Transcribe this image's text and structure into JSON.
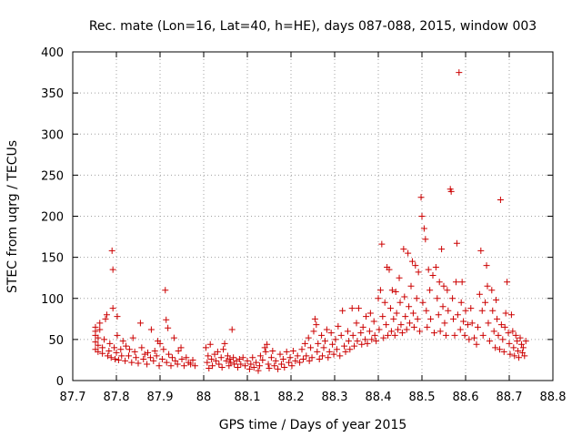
{
  "chart_data": {
    "type": "scatter",
    "title": "Rec. mate (Lon=16, Lat=40, h=HE), days 087-088, 2015, window 003",
    "xlabel": "GPS time / Days of year 2015",
    "ylabel": "STEC from uqrg / TECUs",
    "xlim": [
      87.7,
      88.8
    ],
    "ylim": [
      0,
      400
    ],
    "xticks": [
      87.7,
      87.8,
      87.9,
      88.0,
      88.1,
      88.2,
      88.3,
      88.4,
      88.5,
      88.6,
      88.7,
      88.8
    ],
    "xtick_labels": [
      "87.7",
      "87.8",
      "87.9",
      "88",
      "88.1",
      "88.2",
      "88.3",
      "88.4",
      "88.5",
      "88.6",
      "88.7",
      "88.8"
    ],
    "yticks": [
      0,
      50,
      100,
      150,
      200,
      250,
      300,
      350,
      400
    ],
    "ytick_labels": [
      "0",
      "50",
      "100",
      "150",
      "200",
      "250",
      "300",
      "350",
      "400"
    ],
    "grid": true,
    "marker": "+",
    "color": "#cc0000",
    "series": [
      {
        "name": "STEC",
        "points": [
          [
            87.752,
            38
          ],
          [
            87.752,
            47
          ],
          [
            87.752,
            55
          ],
          [
            87.752,
            60
          ],
          [
            87.752,
            65
          ],
          [
            87.758,
            35
          ],
          [
            87.758,
            43
          ],
          [
            87.758,
            52
          ],
          [
            87.762,
            62
          ],
          [
            87.762,
            70
          ],
          [
            87.768,
            33
          ],
          [
            87.768,
            40
          ],
          [
            87.772,
            50
          ],
          [
            87.775,
            75
          ],
          [
            87.778,
            80
          ],
          [
            87.78,
            30
          ],
          [
            87.783,
            36
          ],
          [
            87.785,
            45
          ],
          [
            87.788,
            28
          ],
          [
            87.79,
            158
          ],
          [
            87.792,
            135
          ],
          [
            87.792,
            88
          ],
          [
            87.795,
            40
          ],
          [
            87.797,
            26
          ],
          [
            87.8,
            34
          ],
          [
            87.802,
            55
          ],
          [
            87.802,
            78
          ],
          [
            87.805,
            25
          ],
          [
            87.81,
            38
          ],
          [
            87.812,
            30
          ],
          [
            87.815,
            48
          ],
          [
            87.82,
            24
          ],
          [
            87.822,
            42
          ],
          [
            87.828,
            30
          ],
          [
            87.83,
            38
          ],
          [
            87.835,
            22
          ],
          [
            87.838,
            52
          ],
          [
            87.842,
            35
          ],
          [
            87.845,
            28
          ],
          [
            87.85,
            21
          ],
          [
            87.855,
            70
          ],
          [
            87.858,
            40
          ],
          [
            87.862,
            26
          ],
          [
            87.865,
            32
          ],
          [
            87.87,
            20
          ],
          [
            87.872,
            34
          ],
          [
            87.878,
            28
          ],
          [
            87.88,
            62
          ],
          [
            87.885,
            24
          ],
          [
            87.888,
            36
          ],
          [
            87.892,
            30
          ],
          [
            87.895,
            48
          ],
          [
            87.898,
            18
          ],
          [
            87.9,
            45
          ],
          [
            87.905,
            26
          ],
          [
            87.908,
            38
          ],
          [
            87.912,
            110
          ],
          [
            87.914,
            74
          ],
          [
            87.915,
            22
          ],
          [
            87.918,
            64
          ],
          [
            87.92,
            32
          ],
          [
            87.925,
            18
          ],
          [
            87.928,
            28
          ],
          [
            87.932,
            52
          ],
          [
            87.935,
            24
          ],
          [
            87.94,
            20
          ],
          [
            87.942,
            36
          ],
          [
            87.948,
            40
          ],
          [
            87.95,
            26
          ],
          [
            87.955,
            18
          ],
          [
            87.96,
            28
          ],
          [
            87.965,
            22
          ],
          [
            87.97,
            20
          ],
          [
            87.975,
            25
          ],
          [
            87.98,
            18
          ],
          [
            88.005,
            40
          ],
          [
            88.008,
            22
          ],
          [
            88.01,
            30
          ],
          [
            88.012,
            15
          ],
          [
            88.015,
            44
          ],
          [
            88.018,
            26
          ],
          [
            88.02,
            18
          ],
          [
            88.025,
            32
          ],
          [
            88.028,
            24
          ],
          [
            88.032,
            35
          ],
          [
            88.035,
            20
          ],
          [
            88.04,
            28
          ],
          [
            88.042,
            16
          ],
          [
            88.045,
            38
          ],
          [
            88.048,
            45
          ],
          [
            88.052,
            24
          ],
          [
            88.055,
            30
          ],
          [
            88.058,
            18
          ],
          [
            88.06,
            26
          ],
          [
            88.062,
            22
          ],
          [
            88.065,
            62
          ],
          [
            88.068,
            28
          ],
          [
            88.07,
            20
          ],
          [
            88.075,
            24
          ],
          [
            88.078,
            16
          ],
          [
            88.082,
            26
          ],
          [
            88.085,
            20
          ],
          [
            88.09,
            28
          ],
          [
            88.095,
            18
          ],
          [
            88.1,
            24
          ],
          [
            88.105,
            14
          ],
          [
            88.108,
            20
          ],
          [
            88.112,
            28
          ],
          [
            88.115,
            16
          ],
          [
            88.12,
            22
          ],
          [
            88.125,
            12
          ],
          [
            88.128,
            18
          ],
          [
            88.13,
            30
          ],
          [
            88.135,
            25
          ],
          [
            88.14,
            40
          ],
          [
            88.142,
            35
          ],
          [
            88.145,
            44
          ],
          [
            88.148,
            20
          ],
          [
            88.15,
            15
          ],
          [
            88.155,
            28
          ],
          [
            88.158,
            36
          ],
          [
            88.162,
            18
          ],
          [
            88.165,
            24
          ],
          [
            88.17,
            14
          ],
          [
            88.175,
            32
          ],
          [
            88.178,
            20
          ],
          [
            88.182,
            26
          ],
          [
            88.185,
            16
          ],
          [
            88.19,
            35
          ],
          [
            88.195,
            22
          ],
          [
            88.198,
            28
          ],
          [
            88.202,
            18
          ],
          [
            88.205,
            36
          ],
          [
            88.21,
            24
          ],
          [
            88.215,
            30
          ],
          [
            88.22,
            22
          ],
          [
            88.225,
            38
          ],
          [
            88.228,
            26
          ],
          [
            88.232,
            45
          ],
          [
            88.235,
            30
          ],
          [
            88.24,
            52
          ],
          [
            88.242,
            24
          ],
          [
            88.245,
            40
          ],
          [
            88.248,
            28
          ],
          [
            88.252,
            60
          ],
          [
            88.255,
            75
          ],
          [
            88.258,
            68
          ],
          [
            88.26,
            35
          ],
          [
            88.262,
            45
          ],
          [
            88.265,
            26
          ],
          [
            88.27,
            55
          ],
          [
            88.272,
            30
          ],
          [
            88.275,
            40
          ],
          [
            88.278,
            48
          ],
          [
            88.282,
            62
          ],
          [
            88.285,
            28
          ],
          [
            88.288,
            35
          ],
          [
            88.292,
            58
          ],
          [
            88.295,
            44
          ],
          [
            88.298,
            32
          ],
          [
            88.302,
            50
          ],
          [
            88.305,
            38
          ],
          [
            88.308,
            66
          ],
          [
            88.312,
            30
          ],
          [
            88.315,
            55
          ],
          [
            88.318,
            85
          ],
          [
            88.322,
            42
          ],
          [
            88.325,
            35
          ],
          [
            88.33,
            60
          ],
          [
            88.332,
            48
          ],
          [
            88.335,
            38
          ],
          [
            88.34,
            88
          ],
          [
            88.342,
            55
          ],
          [
            88.345,
            42
          ],
          [
            88.35,
            70
          ],
          [
            88.352,
            48
          ],
          [
            88.355,
            88
          ],
          [
            88.36,
            58
          ],
          [
            88.362,
            44
          ],
          [
            88.365,
            65
          ],
          [
            88.37,
            50
          ],
          [
            88.372,
            78
          ],
          [
            88.375,
            45
          ],
          [
            88.38,
            60
          ],
          [
            88.382,
            82
          ],
          [
            88.385,
            50
          ],
          [
            88.39,
            72
          ],
          [
            88.392,
            55
          ],
          [
            88.395,
            48
          ],
          [
            88.4,
            100
          ],
          [
            88.402,
            62
          ],
          [
            88.405,
            110
          ],
          [
            88.408,
            166
          ],
          [
            88.41,
            78
          ],
          [
            88.412,
            52
          ],
          [
            88.415,
            95
          ],
          [
            88.418,
            68
          ],
          [
            88.42,
            138
          ],
          [
            88.422,
            55
          ],
          [
            88.425,
            135
          ],
          [
            88.428,
            88
          ],
          [
            88.43,
            60
          ],
          [
            88.432,
            110
          ],
          [
            88.435,
            75
          ],
          [
            88.438,
            55
          ],
          [
            88.44,
            108
          ],
          [
            88.442,
            82
          ],
          [
            88.445,
            62
          ],
          [
            88.448,
            125
          ],
          [
            88.45,
            95
          ],
          [
            88.452,
            68
          ],
          [
            88.455,
            58
          ],
          [
            88.458,
            160
          ],
          [
            88.46,
            102
          ],
          [
            88.462,
            78
          ],
          [
            88.465,
            62
          ],
          [
            88.468,
            155
          ],
          [
            88.47,
            90
          ],
          [
            88.472,
            70
          ],
          [
            88.475,
            115
          ],
          [
            88.478,
            145
          ],
          [
            88.48,
            82
          ],
          [
            88.482,
            65
          ],
          [
            88.485,
            140
          ],
          [
            88.488,
            100
          ],
          [
            88.49,
            75
          ],
          [
            88.492,
            132
          ],
          [
            88.495,
            60
          ],
          [
            88.498,
            223
          ],
          [
            88.5,
            200
          ],
          [
            88.502,
            95
          ],
          [
            88.505,
            185
          ],
          [
            88.508,
            172
          ],
          [
            88.51,
            85
          ],
          [
            88.512,
            65
          ],
          [
            88.515,
            135
          ],
          [
            88.518,
            110
          ],
          [
            88.52,
            75
          ],
          [
            88.525,
            128
          ],
          [
            88.528,
            58
          ],
          [
            88.532,
            138
          ],
          [
            88.535,
            100
          ],
          [
            88.538,
            80
          ],
          [
            88.54,
            120
          ],
          [
            88.542,
            60
          ],
          [
            88.545,
            160
          ],
          [
            88.548,
            90
          ],
          [
            88.55,
            115
          ],
          [
            88.552,
            70
          ],
          [
            88.555,
            55
          ],
          [
            88.558,
            110
          ],
          [
            88.56,
            85
          ],
          [
            88.565,
            233
          ],
          [
            88.567,
            230
          ],
          [
            88.57,
            100
          ],
          [
            88.572,
            75
          ],
          [
            88.575,
            55
          ],
          [
            88.578,
            120
          ],
          [
            88.58,
            167
          ],
          [
            88.582,
            80
          ],
          [
            88.585,
            375
          ],
          [
            88.588,
            62
          ],
          [
            88.59,
            95
          ],
          [
            88.592,
            120
          ],
          [
            88.595,
            72
          ],
          [
            88.598,
            55
          ],
          [
            88.6,
            85
          ],
          [
            88.605,
            68
          ],
          [
            88.608,
            50
          ],
          [
            88.612,
            88
          ],
          [
            88.615,
            70
          ],
          [
            88.62,
            52
          ],
          [
            88.625,
            44
          ],
          [
            88.628,
            65
          ],
          [
            88.632,
            105
          ],
          [
            88.635,
            158
          ],
          [
            88.638,
            85
          ],
          [
            88.64,
            55
          ],
          [
            88.645,
            95
          ],
          [
            88.648,
            140
          ],
          [
            88.65,
            115
          ],
          [
            88.652,
            70
          ],
          [
            88.655,
            48
          ],
          [
            88.66,
            110
          ],
          [
            88.662,
            85
          ],
          [
            88.665,
            60
          ],
          [
            88.668,
            40
          ],
          [
            88.67,
            98
          ],
          [
            88.672,
            75
          ],
          [
            88.675,
            55
          ],
          [
            88.678,
            38
          ],
          [
            88.68,
            220
          ],
          [
            88.682,
            68
          ],
          [
            88.685,
            50
          ],
          [
            88.688,
            35
          ],
          [
            88.69,
            65
          ],
          [
            88.692,
            82
          ],
          [
            88.695,
            120
          ],
          [
            88.698,
            58
          ],
          [
            88.7,
            45
          ],
          [
            88.702,
            32
          ],
          [
            88.705,
            80
          ],
          [
            88.708,
            60
          ],
          [
            88.71,
            40
          ],
          [
            88.712,
            30
          ],
          [
            88.715,
            55
          ],
          [
            88.718,
            48
          ],
          [
            88.72,
            36
          ],
          [
            88.722,
            28
          ],
          [
            88.725,
            52
          ],
          [
            88.728,
            44
          ],
          [
            88.73,
            34
          ],
          [
            88.732,
            40
          ],
          [
            88.735,
            30
          ],
          [
            88.738,
            48
          ]
        ]
      }
    ]
  }
}
